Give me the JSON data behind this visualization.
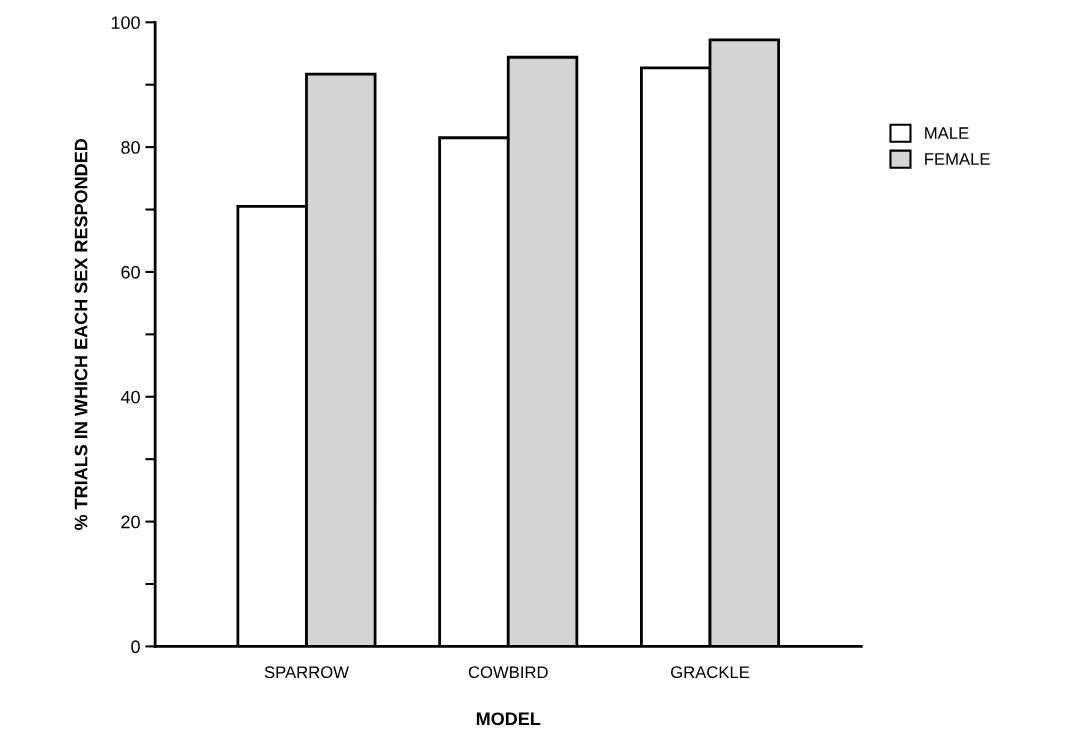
{
  "chart_data": {
    "type": "bar",
    "xlabel": "MODEL",
    "ylabel": "% TRIALS IN WHICH EACH SEX RESPONDED",
    "categories": [
      "SPARROW",
      "COWBIRD",
      "GRACKLE"
    ],
    "series": [
      {
        "name": "MALE",
        "color": "#ffffff",
        "values": [
          70.5,
          81.5,
          92.7
        ]
      },
      {
        "name": "FEMALE",
        "color": "#d4d4d4",
        "values": [
          91.7,
          94.4,
          97.2
        ]
      }
    ],
    "ylim": [
      0,
      100
    ],
    "yticks": [
      0,
      {
        "value": 10,
        "label": null
      },
      20,
      {
        "value": 30,
        "label": null
      },
      40,
      {
        "value": 50,
        "label": null
      },
      60,
      {
        "value": 70,
        "label": null
      },
      80,
      {
        "value": 90,
        "label": null
      },
      100
    ],
    "grid": false,
    "legend": "right"
  }
}
